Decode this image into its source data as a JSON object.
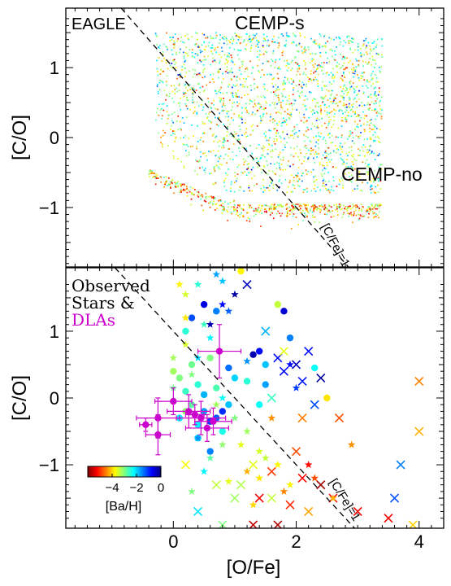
{
  "chart_data": [
    {
      "type": "scatter",
      "panel": "top",
      "xlabel": "",
      "ylabel": "[C/O]",
      "xlim": [
        -1.75,
        4.4
      ],
      "ylim": [
        -1.85,
        1.85
      ],
      "yticks": [
        -1,
        0,
        1
      ],
      "ytick_labels": [
        "−1",
        "0",
        "1"
      ],
      "annotations": [
        {
          "text": "EAGLE",
          "color": "#000000"
        },
        {
          "text": "CEMP-s",
          "color": "#5555ee"
        },
        {
          "text": "CEMP-no",
          "color": "#a33030"
        },
        {
          "text": "[C/Fe]=1",
          "color": "#000000"
        }
      ],
      "reference_line": {
        "label": "[C/Fe]=1",
        "slope": -1,
        "intercept": 1
      },
      "point_cloud": {
        "description_regions": [
          {
            "x_range": [
              -0.4,
              3.5
            ],
            "y_range": [
              -0.95,
              1.5
            ],
            "colors": "cyan-green-yellow dominant, scattered blue/red"
          }
        ]
      },
      "grid": false
    },
    {
      "type": "scatter",
      "panel": "bottom",
      "xlabel": "[O/Fe]",
      "ylabel": "[C/O]",
      "xlim": [
        -1.75,
        4.4
      ],
      "ylim": [
        -1.95,
        1.95
      ],
      "xticks": [
        0,
        2,
        4
      ],
      "xtick_labels": [
        "0",
        "2",
        "4"
      ],
      "yticks": [
        -1,
        0,
        1
      ],
      "ytick_labels": [
        "−1",
        "0",
        "1"
      ],
      "legend_text": {
        "line1": "Observed",
        "line2": "Stars &",
        "line3": "DLAs",
        "color_dlas": "#cc00cc"
      },
      "reference_line": {
        "label": "[C/Fe]=1",
        "slope": -1,
        "intercept": 1
      },
      "colorbar": {
        "label": "[Ba/H]",
        "ticks": [
          -4,
          -2,
          0
        ],
        "tick_labels": [
          "−4",
          "−2",
          "0"
        ],
        "range": [
          -6,
          0
        ],
        "colormap": [
          "#7f0000",
          "#ff0000",
          "#ff8000",
          "#ffff00",
          "#80ff80",
          "#00ffff",
          "#0080ff",
          "#0000ff",
          "#00007f"
        ]
      },
      "series": [
        {
          "name": "circles",
          "marker": "circle",
          "points": [
            [
              0.2,
              1.0,
              -2.5
            ],
            [
              0.3,
              1.2,
              -1.2
            ],
            [
              0.5,
              1.4,
              -0.6
            ],
            [
              0.7,
              1.3,
              -1.5
            ],
            [
              1.1,
              1.9,
              -3.8
            ],
            [
              1.7,
              1.4,
              -3.4
            ],
            [
              1.8,
              1.3,
              -0.5
            ],
            [
              1.9,
              0.9,
              -1.5
            ],
            [
              1.3,
              0.65,
              -0.3
            ],
            [
              1.4,
              0.7,
              -0.8
            ],
            [
              1.5,
              0.5,
              -1.9
            ],
            [
              1.0,
              0.3,
              -2.0
            ],
            [
              2.3,
              0.45,
              -2.3
            ],
            [
              2.5,
              0.0,
              -3.9
            ],
            [
              1.2,
              0.25,
              -2.5
            ],
            [
              0.9,
              0.45,
              -1.4
            ],
            [
              0.6,
              0.6,
              -3.0
            ],
            [
              0.4,
              0.2,
              -2.5
            ],
            [
              0.1,
              0.3,
              -3.0
            ],
            [
              0.2,
              0.1,
              -2.6
            ],
            [
              0.3,
              -0.1,
              -2.8
            ],
            [
              0.5,
              -0.2,
              -1.7
            ],
            [
              0.7,
              -0.3,
              -1.3
            ],
            [
              0.4,
              -0.4,
              -2.2
            ],
            [
              0.6,
              -0.35,
              -1.1
            ],
            [
              0.8,
              -0.5,
              -2.4
            ],
            [
              0.3,
              0.5,
              -2.9
            ],
            [
              0.0,
              0.4,
              -3.2
            ],
            [
              0.1,
              -0.3,
              -2.2
            ],
            [
              0.5,
              0.05,
              -1.8
            ],
            [
              0.7,
              0.15,
              -2.7
            ],
            [
              0.9,
              -0.1,
              -1.9
            ],
            [
              0.2,
              -0.2,
              -3.1
            ],
            [
              0.4,
              -0.6,
              -2.0
            ],
            [
              0.6,
              -0.8,
              -1.5
            ],
            [
              0.8,
              -0.2,
              -1.0
            ],
            [
              1.5,
              0.2,
              -1.7
            ],
            [
              1.4,
              -0.1,
              -2.3
            ]
          ]
        },
        {
          "name": "crosses",
          "marker": "x",
          "points": [
            [
              1.2,
              1.7,
              -0.4
            ],
            [
              1.5,
              1.0,
              -1.8
            ],
            [
              1.7,
              0.6,
              -0.8
            ],
            [
              1.8,
              0.4,
              -0.8
            ],
            [
              2.0,
              0.5,
              -0.4
            ],
            [
              2.1,
              0.25,
              -0.9
            ],
            [
              1.8,
              0.7,
              -3.6
            ],
            [
              2.2,
              0.7,
              -0.8
            ],
            [
              2.4,
              0.3,
              -0.2
            ],
            [
              2.7,
              -0.3,
              -4.8
            ],
            [
              2.3,
              -0.1,
              -1.2
            ],
            [
              1.6,
              0.0,
              -2.6
            ],
            [
              4.0,
              0.25,
              -4.5
            ],
            [
              4.0,
              -0.5,
              -4.2
            ],
            [
              2.0,
              -0.8,
              -4.8
            ],
            [
              2.6,
              -1.5,
              -5.2
            ],
            [
              3.0,
              -1.7,
              -5.3
            ],
            [
              3.7,
              -1.0,
              -1.5
            ],
            [
              3.6,
              -1.5,
              -1.2
            ],
            [
              3.5,
              -1.8,
              -5.3
            ],
            [
              3.9,
              -1.9,
              -4.0
            ],
            [
              2.1,
              -1.2,
              -5.2
            ],
            [
              2.4,
              -1.3,
              -5.8
            ],
            [
              1.9,
              -1.6,
              -5.0
            ],
            [
              2.2,
              -1.7,
              -4.3
            ],
            [
              0.4,
              -1.7,
              -2.1
            ],
            [
              0.7,
              -1.3,
              -3.4
            ],
            [
              1.1,
              -1.3,
              -3.3
            ],
            [
              0.8,
              -1.9,
              -3.0
            ],
            [
              1.3,
              -1.0,
              -3.6
            ],
            [
              1.4,
              -1.5,
              -5.3
            ],
            [
              1.6,
              -1.1,
              -4.9
            ],
            [
              1.6,
              -1.5,
              -3.4
            ],
            [
              1.0,
              -1.5,
              -3.2
            ],
            [
              2.1,
              -0.3,
              -4.5
            ],
            [
              0.2,
              -1.0,
              -3.7
            ],
            [
              1.3,
              -1.9,
              -5.6
            ],
            [
              1.7,
              -1.9,
              -5.7
            ]
          ]
        },
        {
          "name": "stars",
          "marker": "star",
          "points": [
            [
              0.1,
              1.7,
              -3.8
            ],
            [
              0.2,
              1.55,
              -3.5
            ],
            [
              0.4,
              1.7,
              -2.5
            ],
            [
              0.7,
              1.85,
              -1.7
            ],
            [
              0.8,
              1.75,
              -1.9
            ],
            [
              1.0,
              1.55,
              -0.2
            ],
            [
              0.9,
              1.3,
              -1.3
            ],
            [
              0.2,
              0.8,
              -3.5
            ],
            [
              0.5,
              1.1,
              -2.6
            ],
            [
              0.6,
              0.9,
              -2.2
            ],
            [
              1.2,
              0.55,
              -1.6
            ],
            [
              0.3,
              0.35,
              -3.0
            ],
            [
              0.0,
              0.15,
              -2.9
            ],
            [
              0.8,
              0.0,
              -2.3
            ],
            [
              1.0,
              -0.3,
              -3.0
            ],
            [
              0.8,
              -0.7,
              -3.1
            ],
            [
              0.6,
              -0.9,
              -2.8
            ],
            [
              0.5,
              -1.1,
              -2.2
            ],
            [
              0.3,
              -1.4,
              -3.0
            ],
            [
              1.2,
              -0.5,
              -3.2
            ],
            [
              1.4,
              -0.8,
              -3.5
            ],
            [
              1.5,
              -0.9,
              -3.4
            ],
            [
              1.2,
              -1.1,
              -4.2
            ],
            [
              1.4,
              -1.2,
              -3.9
            ],
            [
              1.7,
              -1.0,
              -3.8
            ],
            [
              1.8,
              -1.4,
              -4.5
            ],
            [
              1.9,
              -1.3,
              -3.8
            ],
            [
              2.2,
              -1.0,
              -5.2
            ],
            [
              2.3,
              -1.2,
              -4.8
            ],
            [
              2.6,
              -1.5,
              -4.2
            ],
            [
              2.9,
              -0.7,
              -4.4
            ],
            [
              2.0,
              0.15,
              -1.1
            ],
            [
              1.9,
              0.5,
              -0.8
            ],
            [
              0.2,
              1.2,
              -3.9
            ],
            [
              0.6,
              1.1,
              -0.3
            ],
            [
              0.8,
              1.4,
              -0.8
            ],
            [
              0.4,
              0.6,
              -2.0
            ],
            [
              0.0,
              0.6,
              -3.2
            ],
            [
              1.1,
              -0.7,
              -3.6
            ],
            [
              0.9,
              -1.25,
              -3.6
            ],
            [
              0.7,
              -0.1,
              -3.2
            ],
            [
              0.4,
              -0.6,
              -1.6
            ],
            [
              1.6,
              -0.3,
              -4.4
            ],
            [
              1.3,
              -1.6,
              -4.0
            ]
          ]
        }
      ],
      "dla_points": [
        {
          "x": 0.25,
          "y": -0.2,
          "xerr": 0.35,
          "yerr": 0.25
        },
        {
          "x": 0.45,
          "y": -0.3,
          "xerr": 0.4,
          "yerr": 0.25
        },
        {
          "x": 0.65,
          "y": -0.35,
          "xerr": 0.3,
          "yerr": 0.2
        },
        {
          "x": 0.55,
          "y": -0.45,
          "xerr": 0.35,
          "yerr": 0.2
        },
        {
          "x": 0.75,
          "y": 0.7,
          "xerr": 0.35,
          "yerr": 0.4
        },
        {
          "x": -0.25,
          "y": -0.3,
          "xerr": 0.35,
          "yerr": 0.3
        },
        {
          "x": -0.25,
          "y": -0.55,
          "xerr": 0.2,
          "yerr": 0.3
        },
        {
          "x": -0.45,
          "y": -0.4,
          "xerr": 0.1,
          "yerr": 0.1
        },
        {
          "x": 0.35,
          "y": -0.25,
          "xerr": 0.15,
          "yerr": 0.15
        },
        {
          "x": 0.0,
          "y": -0.05,
          "xerr": 0.3,
          "yerr": 0.2
        }
      ],
      "grid": false
    }
  ]
}
